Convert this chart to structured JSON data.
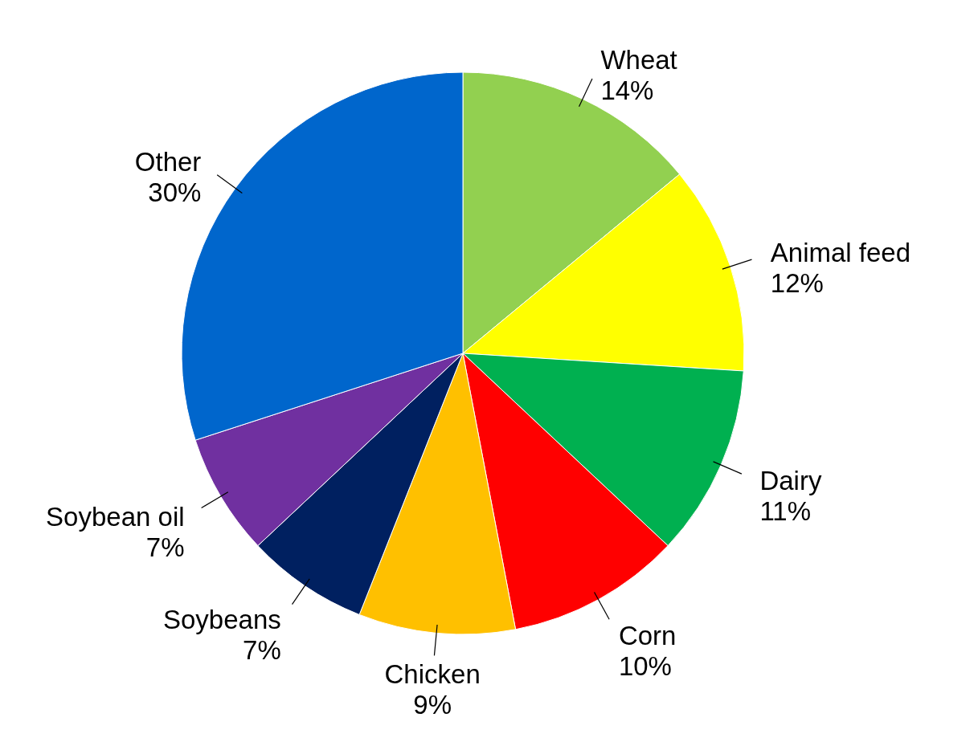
{
  "chart_data": {
    "type": "pie",
    "categories": [
      "Wheat",
      "Animal feed",
      "Dairy",
      "Corn",
      "Chicken",
      "Soybeans",
      "Soybean oil",
      "Other"
    ],
    "values": [
      14,
      12,
      11,
      10,
      9,
      7,
      7,
      30
    ],
    "value_labels": [
      "14%",
      "12%",
      "11%",
      "10%",
      "9%",
      "7%",
      "7%",
      "30%"
    ],
    "colors": [
      "#92d050",
      "#ffff00",
      "#00b050",
      "#ff0000",
      "#ffc000",
      "#002060",
      "#7030a0",
      "#0066cc"
    ]
  }
}
